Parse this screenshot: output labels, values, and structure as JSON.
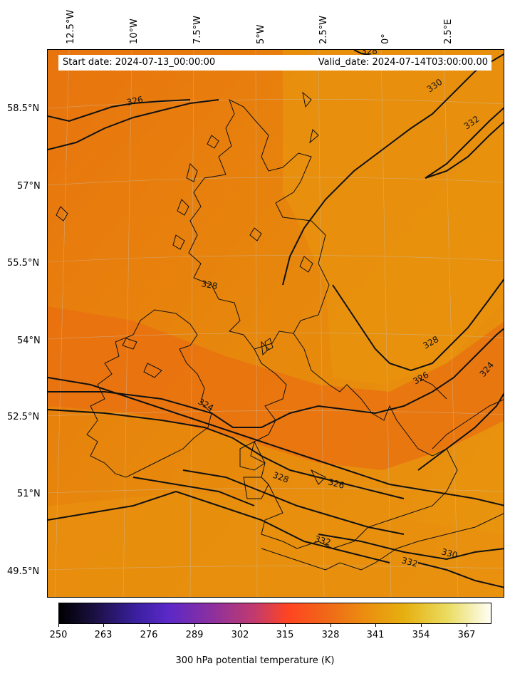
{
  "header": {
    "start_date": "Start date: 2024-07-13_00:00:00",
    "valid_date": "Valid_date: 2024-07-14T03:00:00.00"
  },
  "axes": {
    "lon_ticks": [
      "12.5°W",
      "10°W",
      "7.5°W",
      "5°W",
      "2.5°W",
      "0°",
      "2.5°E"
    ],
    "lat_ticks": [
      "58.5°N",
      "57°N",
      "55.5°N",
      "54°N",
      "52.5°N",
      "51°N",
      "49.5°N"
    ]
  },
  "contours": {
    "labels": [
      "328",
      "326",
      "330",
      "332",
      "328",
      "328",
      "326",
      "324",
      "324",
      "328",
      "326",
      "332",
      "330",
      "332"
    ]
  },
  "colorbar": {
    "ticks": [
      "250",
      "263",
      "276",
      "289",
      "302",
      "315",
      "328",
      "341",
      "354",
      "367"
    ],
    "label": "300 hPa potential temperature (K)",
    "colormap": [
      "#000000",
      "#3b20a0",
      "#c03a70",
      "#ff4422",
      "#ec8a10",
      "#e6b010",
      "#fffff5"
    ]
  },
  "map_colors": {
    "warm_band": "#e8700e",
    "base": "#e7880c",
    "light": "#e99a10"
  }
}
